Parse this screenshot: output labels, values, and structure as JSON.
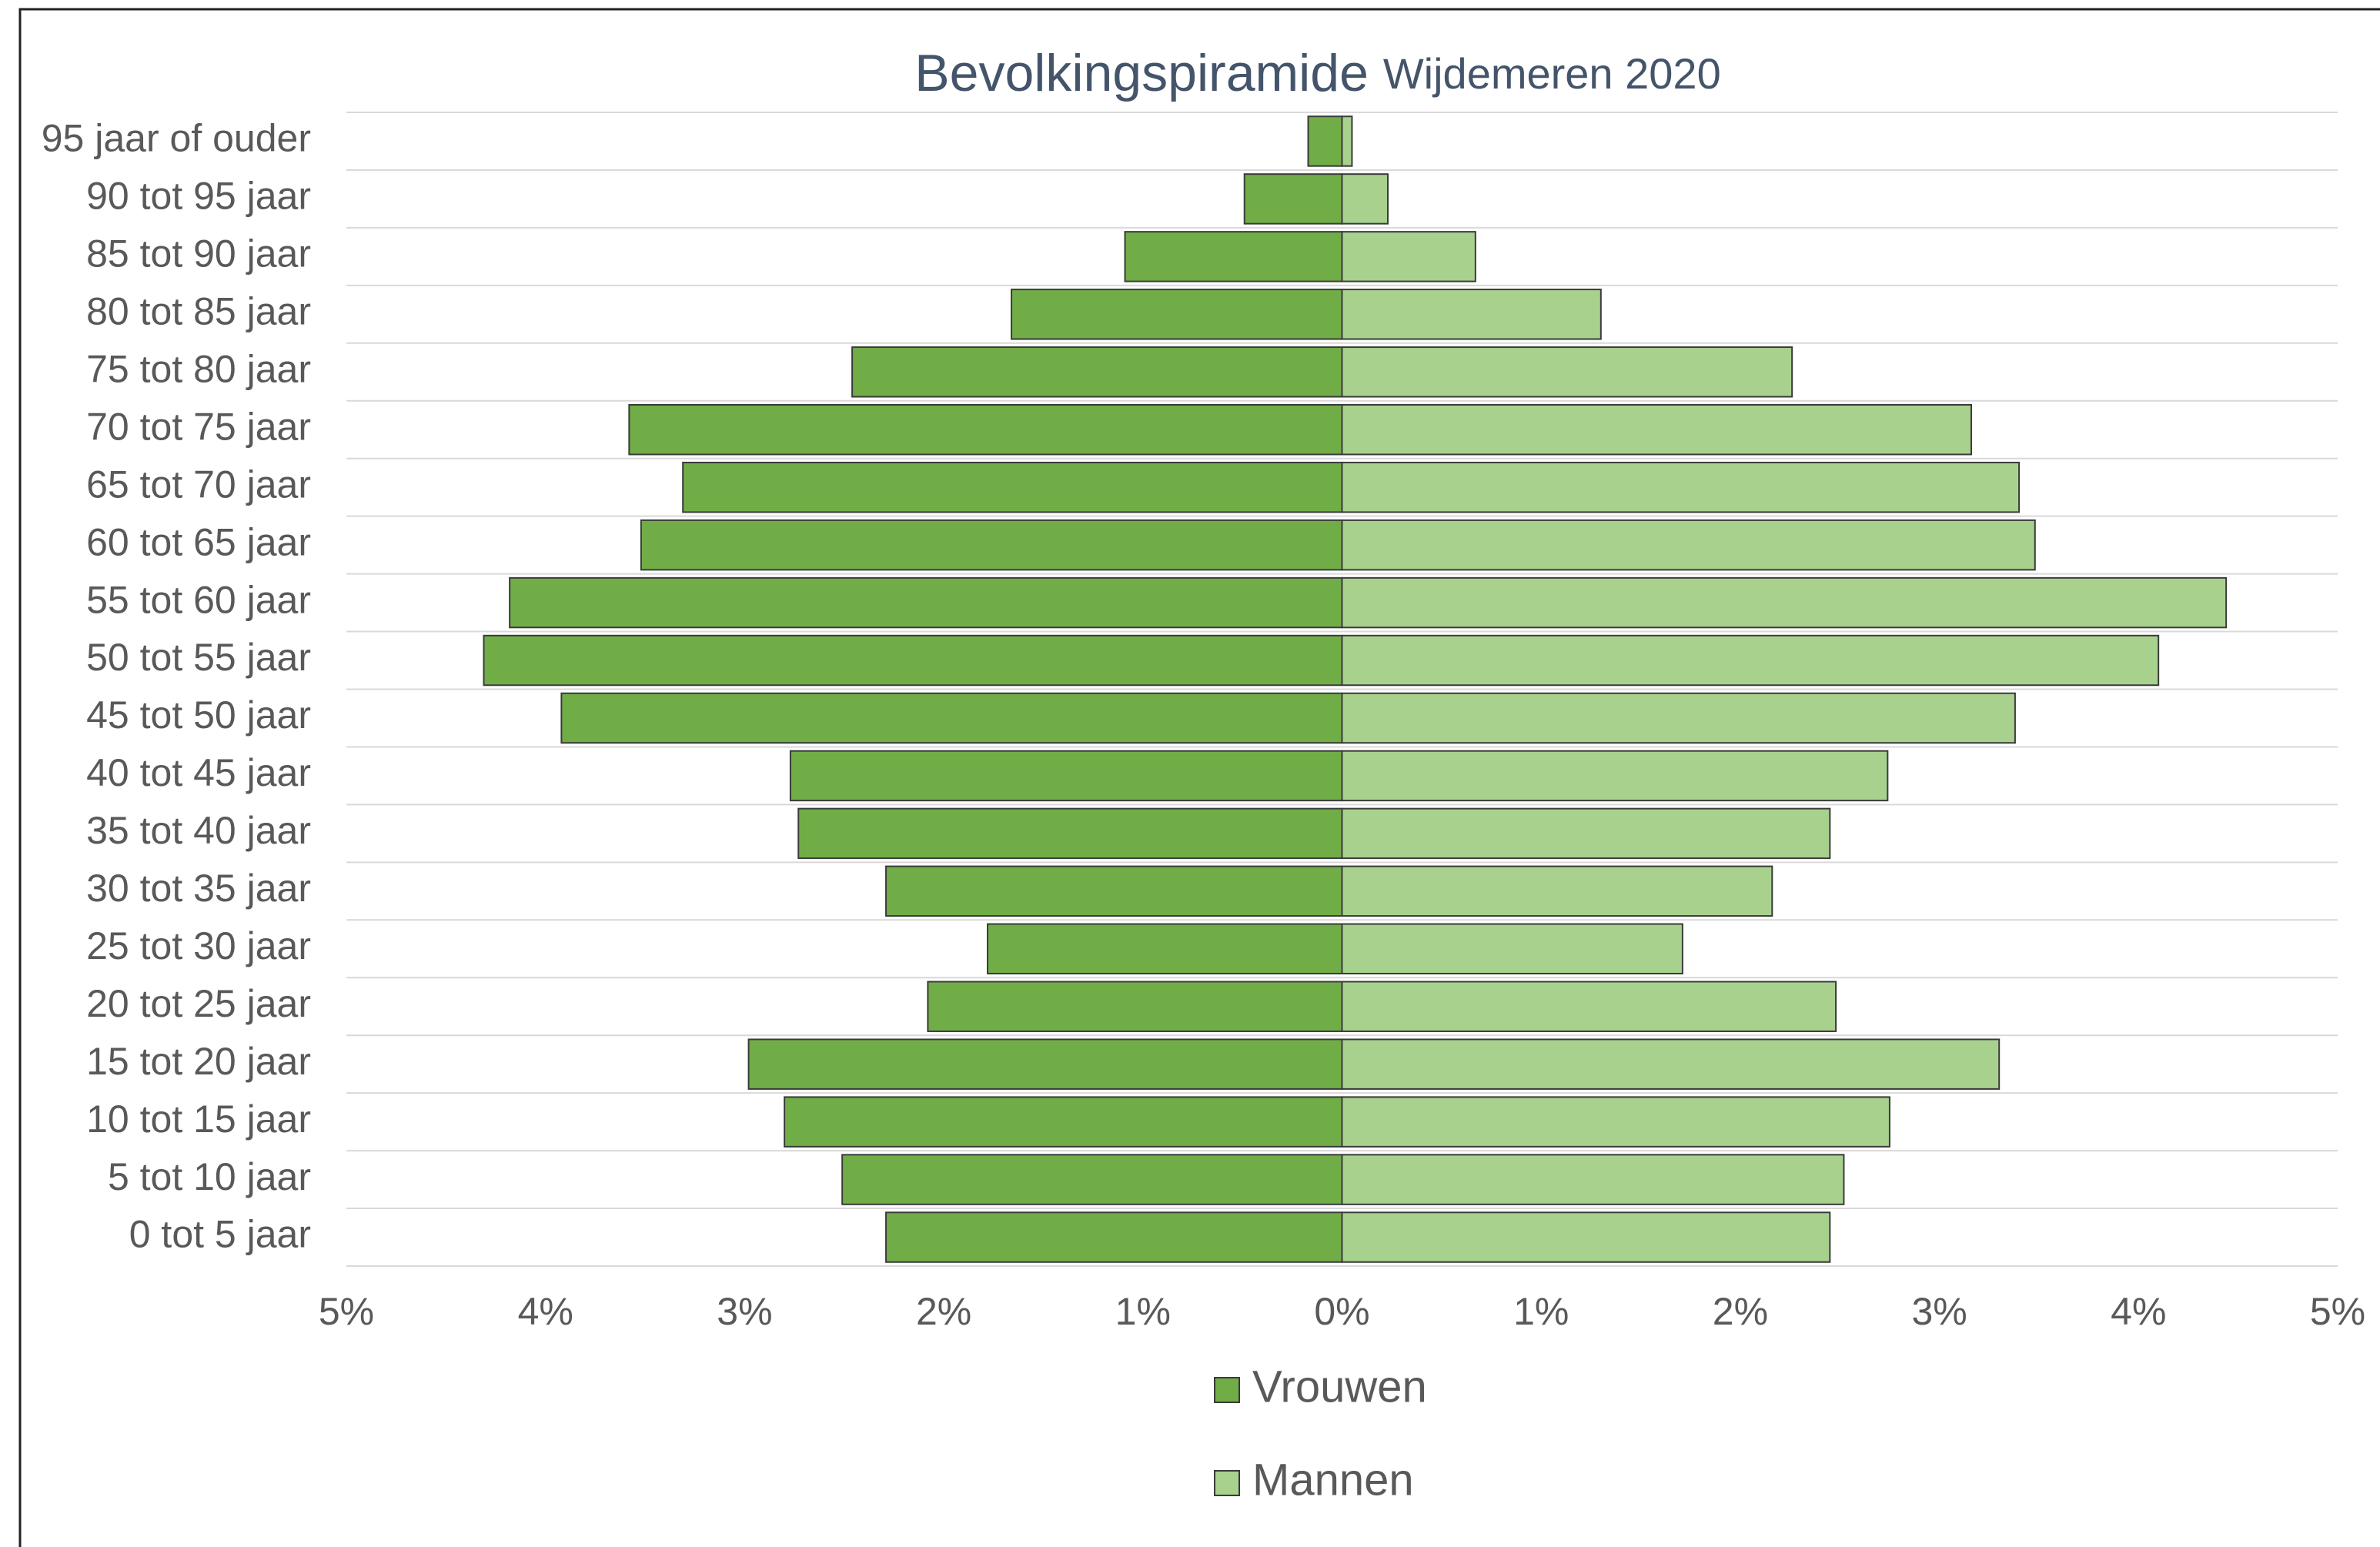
{
  "chart_data": {
    "type": "bar",
    "orientation": "horizontal",
    "stacked": true,
    "title": "Bevolkingspiramide",
    "subtitle": "Wijdemeren 2020",
    "categories": [
      "95 jaar of ouder",
      "90 tot 95 jaar",
      "85 tot 90 jaar",
      "80 tot 85 jaar",
      "75 tot 80 jaar",
      "70 tot 75 jaar",
      "65 tot 70 jaar",
      "60 tot 65 jaar",
      "55 tot 60 jaar",
      "50 tot 55 jaar",
      "45 tot 50 jaar",
      "40 tot 45 jaar",
      "35 tot 40 jaar",
      "30 tot 35 jaar",
      "25 tot 30 jaar",
      "20 tot 25 jaar",
      "15 tot 20 jaar",
      "10 tot 15 jaar",
      "5 tot 10 jaar",
      "0 tot 5 jaar"
    ],
    "series": [
      {
        "name": "Vrouwen",
        "color": "#70ad47",
        "values": [
          -0.17,
          -0.49,
          -1.09,
          -1.66,
          -2.46,
          -3.58,
          -3.31,
          -3.52,
          -4.18,
          -4.31,
          -3.92,
          -2.77,
          -2.73,
          -2.29,
          -1.78,
          -2.08,
          -2.98,
          -2.8,
          -2.51,
          -2.29
        ]
      },
      {
        "name": "Mannen",
        "color": "#a9d18e",
        "values": [
          0.05,
          0.23,
          0.67,
          1.3,
          2.26,
          3.16,
          3.4,
          3.48,
          4.44,
          4.1,
          3.38,
          2.74,
          2.45,
          2.16,
          1.71,
          2.48,
          3.3,
          2.75,
          2.52,
          2.45
        ]
      }
    ],
    "xlim": [
      -5,
      5
    ],
    "xticks": [
      {
        "value": -5,
        "label": "5%"
      },
      {
        "value": -4,
        "label": "4%"
      },
      {
        "value": -3,
        "label": "3%"
      },
      {
        "value": -2,
        "label": "2%"
      },
      {
        "value": -1,
        "label": "1%"
      },
      {
        "value": 0,
        "label": "0%"
      },
      {
        "value": 1,
        "label": "1%"
      },
      {
        "value": 2,
        "label": "2%"
      },
      {
        "value": 3,
        "label": "3%"
      },
      {
        "value": 4,
        "label": "4%"
      },
      {
        "value": 5,
        "label": "5%"
      }
    ],
    "grid": true,
    "legend": "bottom"
  }
}
